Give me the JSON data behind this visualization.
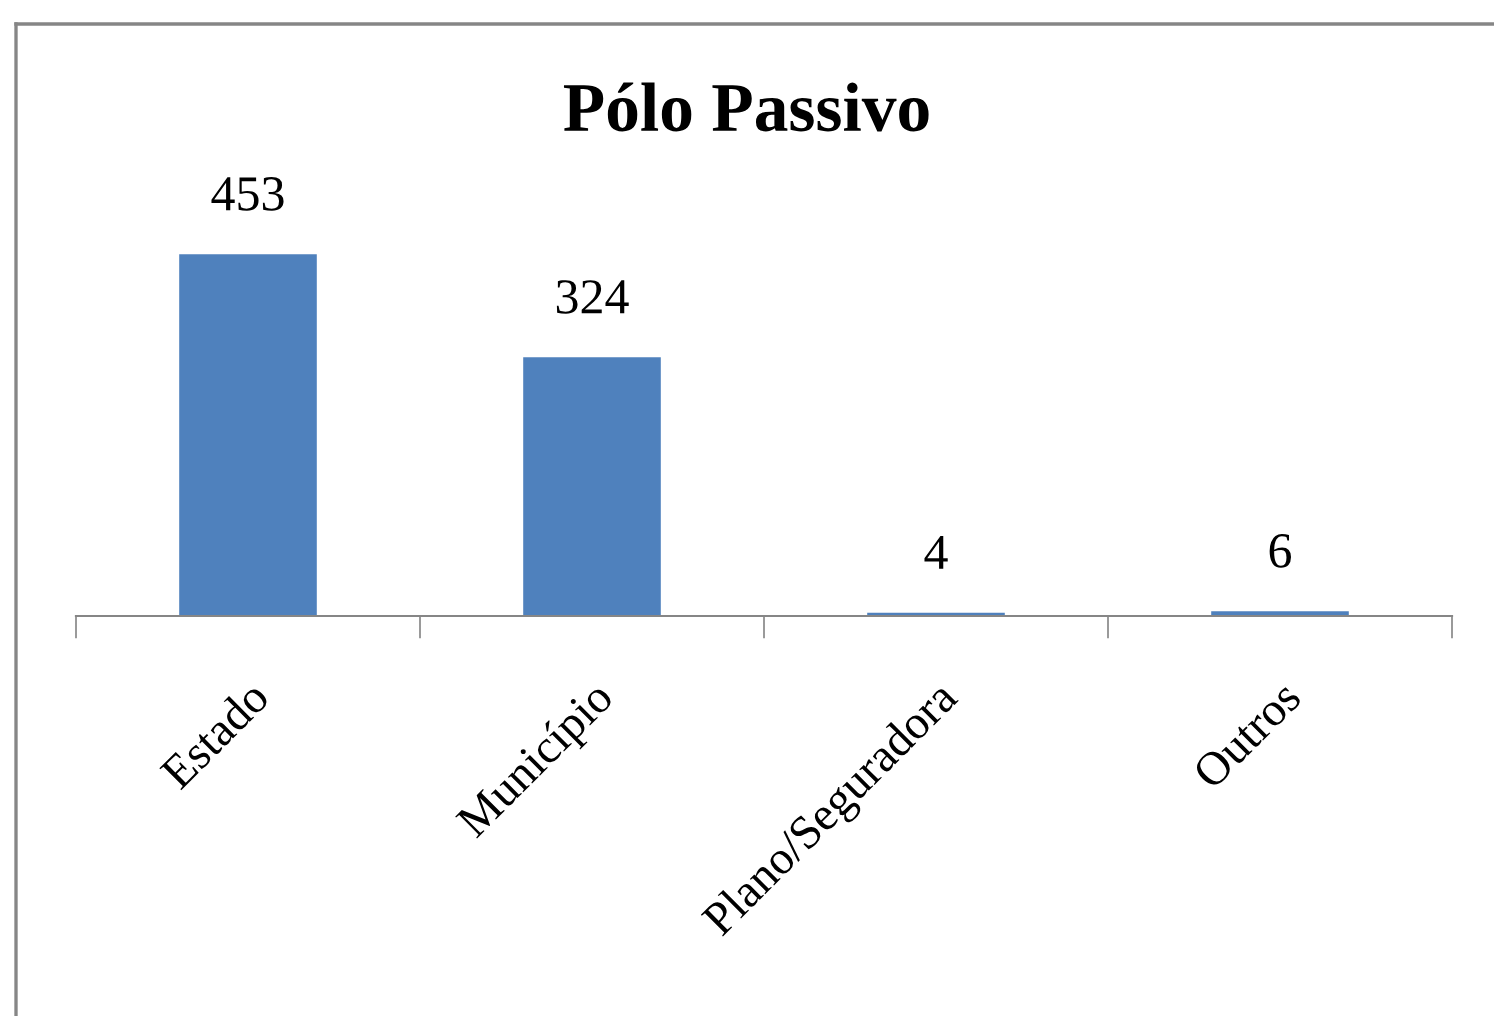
{
  "chart_data": {
    "type": "bar",
    "title": "Pólo Passivo",
    "categories": [
      "Estado",
      "Município",
      "Plano/Seguradora",
      "Outros"
    ],
    "values": [
      453,
      324,
      4,
      6
    ],
    "color": "#4f81bd",
    "data_labels": true,
    "grid": false,
    "legend": false
  }
}
